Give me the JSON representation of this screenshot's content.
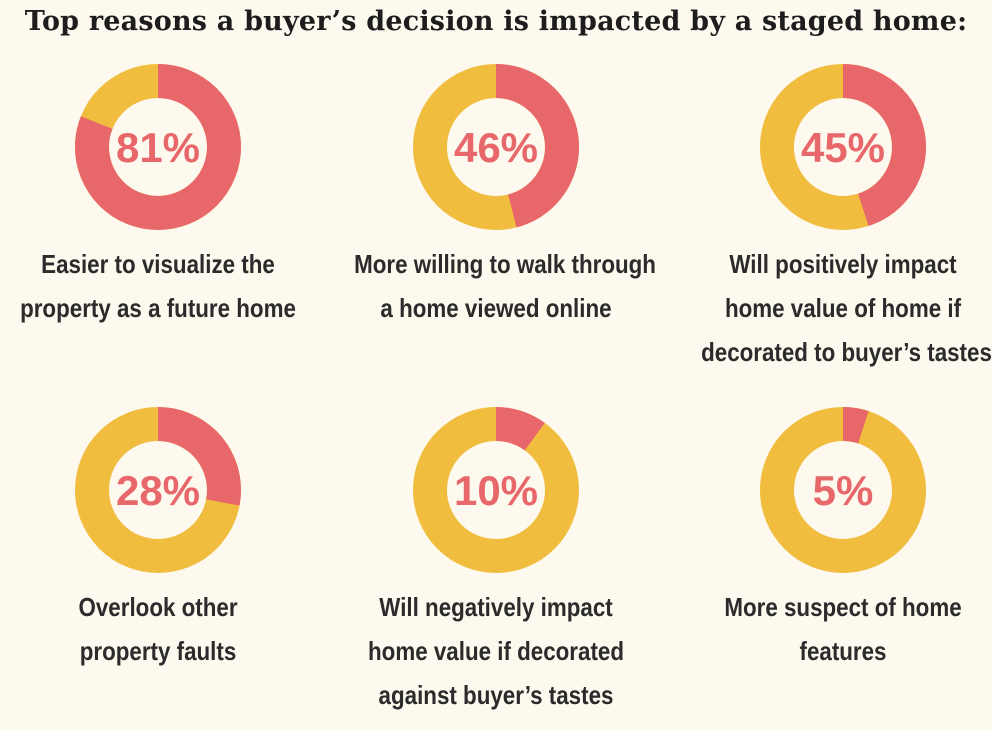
{
  "chart_data": {
    "type": "pie",
    "title": "Top reasons a buyer’s decision is impacted by a staged home:",
    "colors": {
      "value": "#e8676a",
      "remainder": "#f0bd3f",
      "text": "#e8676a"
    },
    "items": [
      {
        "value": 81,
        "label": "81%",
        "caption": [
          "Easier to visualize the",
          "property as a future home"
        ]
      },
      {
        "value": 46,
        "label": "46%",
        "caption": [
          "More willing to walk through",
          "a home viewed online"
        ]
      },
      {
        "value": 45,
        "label": "45%",
        "caption": [
          "Will positively impact",
          "home value of home if",
          "decorated to buyer’s tastes"
        ]
      },
      {
        "value": 28,
        "label": "28%",
        "caption": [
          "Overlook other",
          "property faults"
        ]
      },
      {
        "value": 10,
        "label": "10%",
        "caption": [
          "Will negatively impact",
          "home value if decorated",
          "against buyer’s tastes"
        ]
      },
      {
        "value": 5,
        "label": "5%",
        "caption": [
          "More suspect of home",
          "features"
        ]
      }
    ]
  }
}
